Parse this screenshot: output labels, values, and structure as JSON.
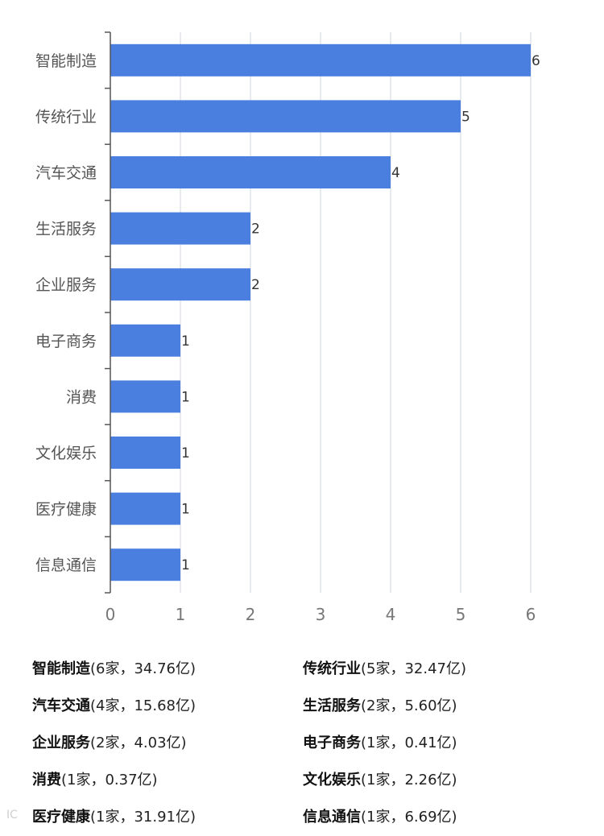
{
  "chart_data": {
    "type": "bar",
    "orientation": "horizontal",
    "title": "",
    "xlabel": "",
    "ylabel": "",
    "xlim": [
      0,
      6
    ],
    "ticks": [
      "0",
      "1",
      "2",
      "3",
      "4",
      "5",
      "6"
    ],
    "grid": true,
    "bar_color": "#4a7fe0",
    "categories": [
      "智能制造",
      "传统行业",
      "汽车交通",
      "生活服务",
      "企业服务",
      "电子商务",
      "消费",
      "文化娱乐",
      "医疗健康",
      "信息通信"
    ],
    "values": [
      6,
      5,
      4,
      2,
      2,
      1,
      1,
      1,
      1,
      1
    ]
  },
  "legend": [
    {
      "name": "智能制造",
      "detail": "(6家，34.76亿)"
    },
    {
      "name": "传统行业",
      "detail": "(5家，32.47亿)"
    },
    {
      "name": "汽车交通",
      "detail": "(4家，15.68亿)"
    },
    {
      "name": "生活服务",
      "detail": "(2家，5.60亿)"
    },
    {
      "name": "企业服务",
      "detail": "(2家，4.03亿)"
    },
    {
      "name": "电子商务",
      "detail": "(1家，0.41亿)"
    },
    {
      "name": "消费",
      "detail": "(1家，0.37亿)"
    },
    {
      "name": "文化娱乐",
      "detail": "(1家，2.26亿)"
    },
    {
      "name": "医疗健康",
      "detail": "(1家，31.91亿)"
    },
    {
      "name": "信息通信",
      "detail": "(1家，6.69亿)"
    }
  ],
  "watermark": "IC"
}
